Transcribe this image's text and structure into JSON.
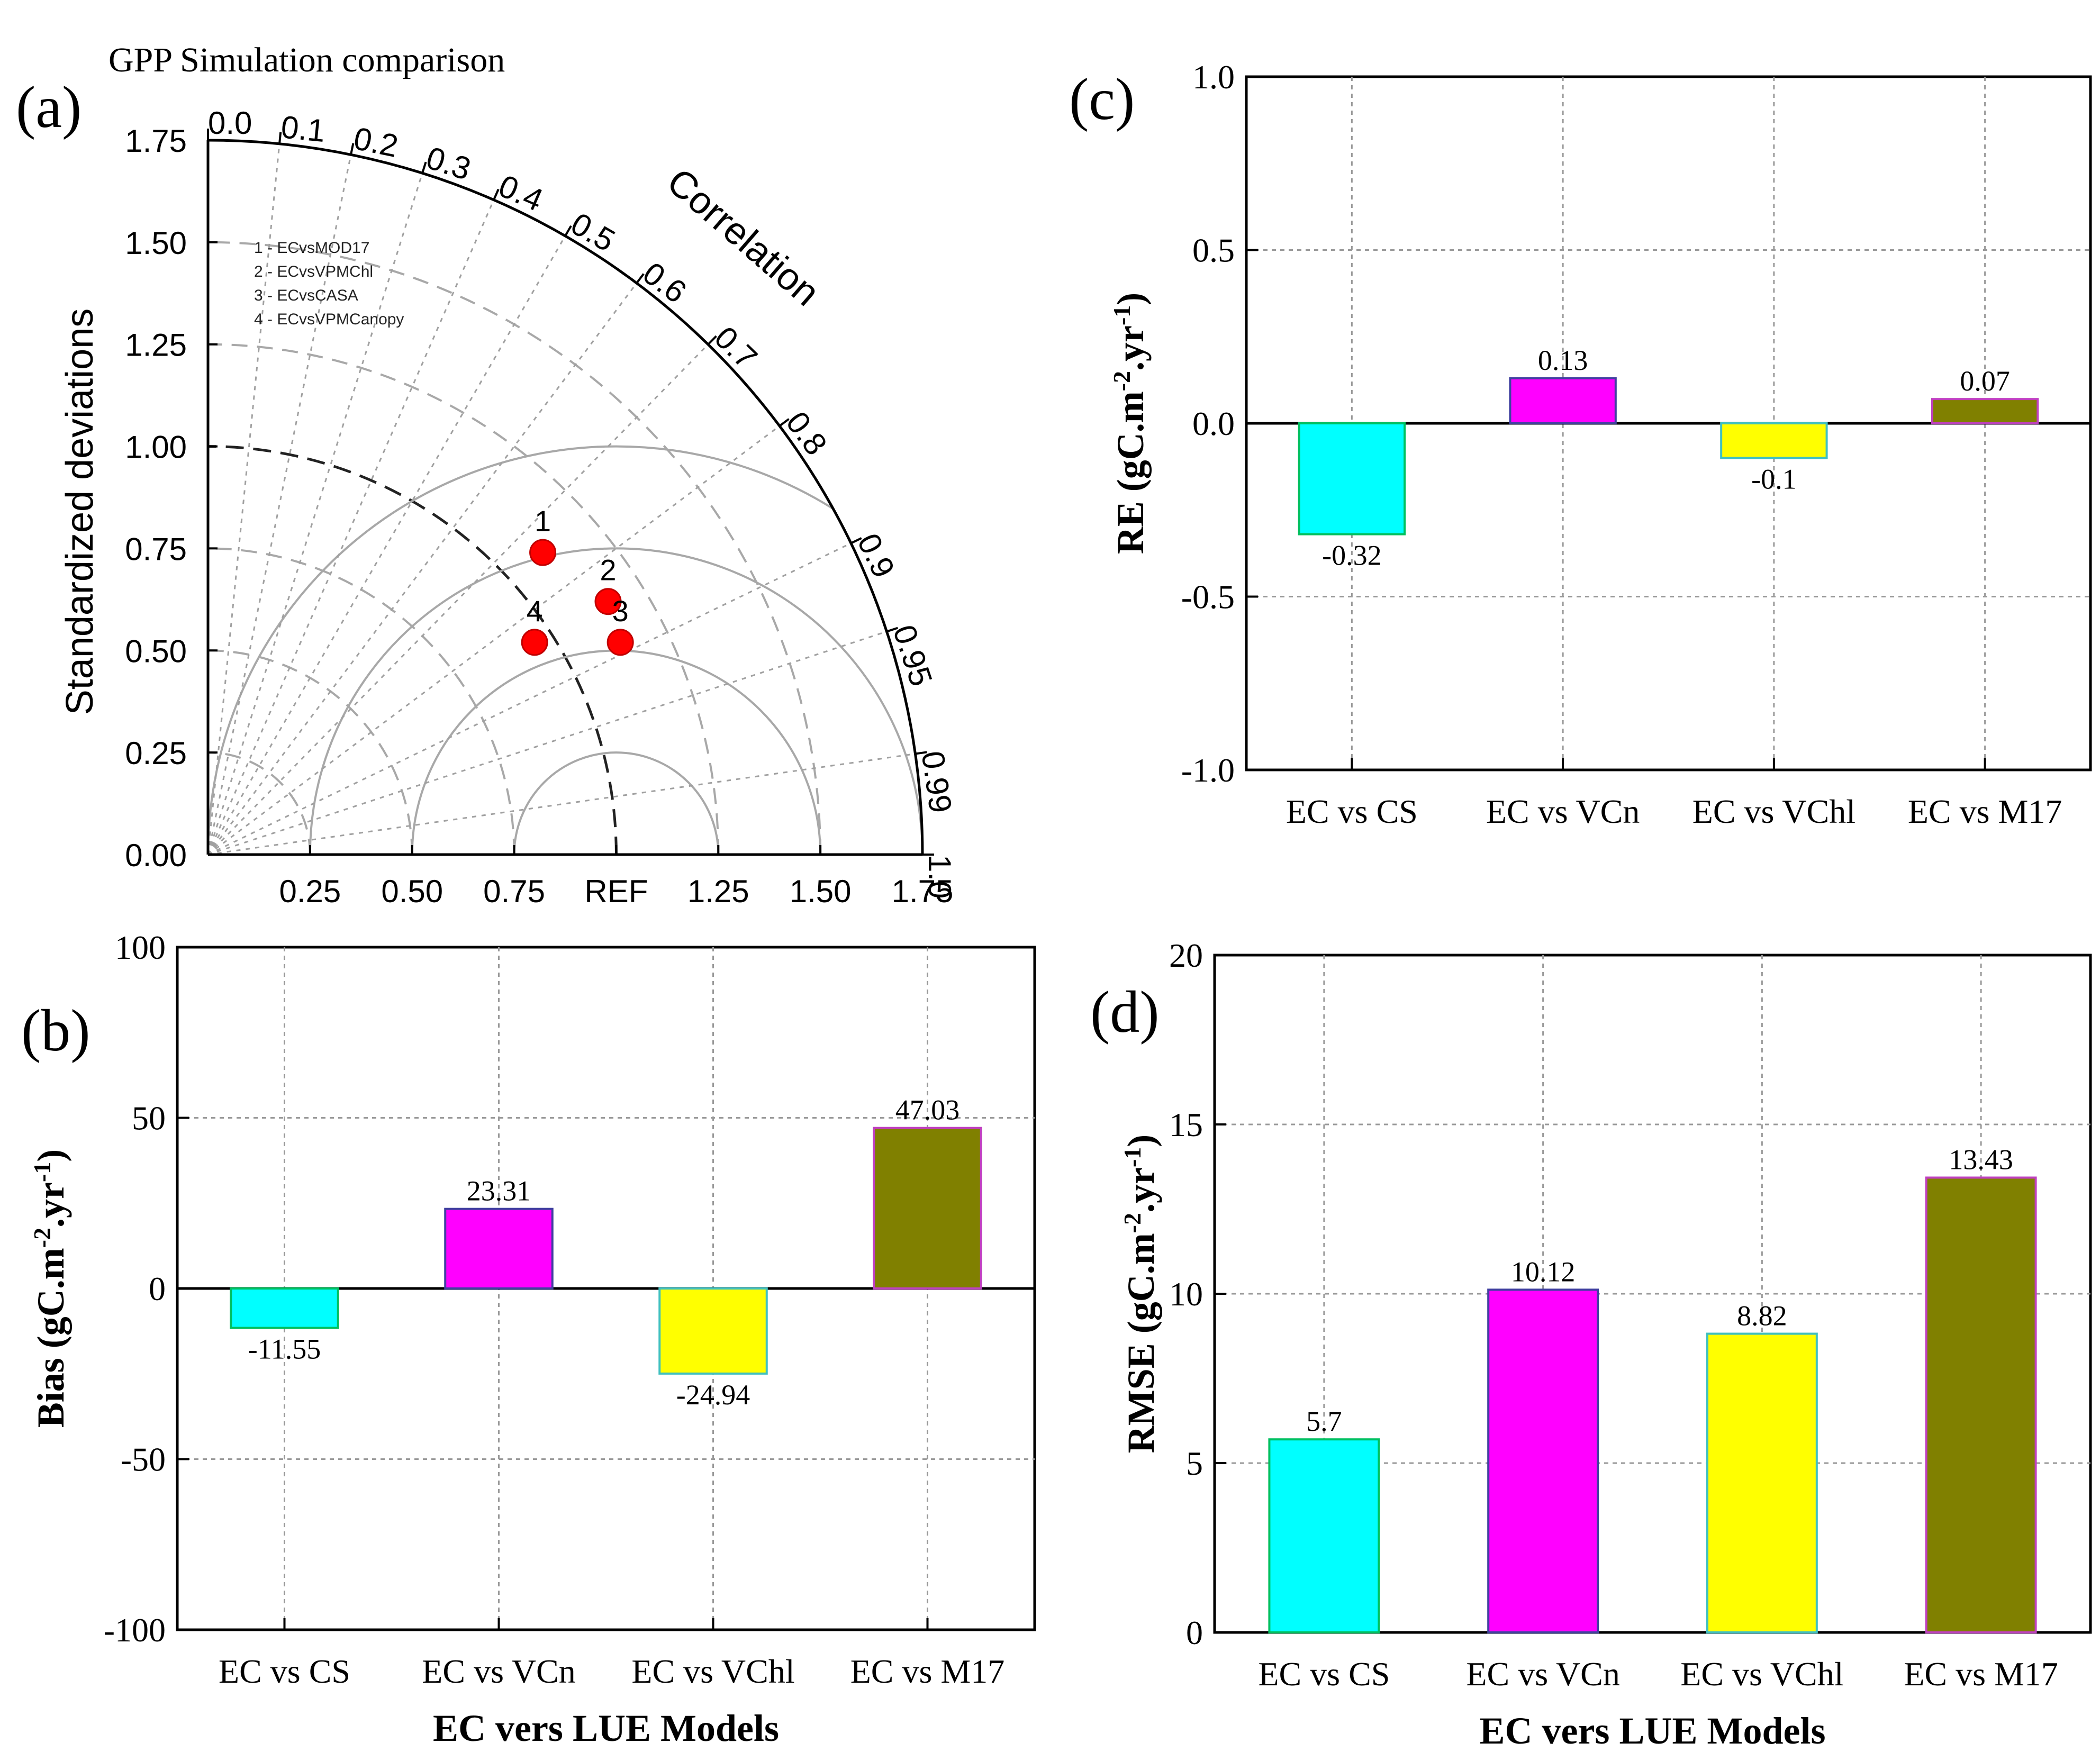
{
  "figure_title": "GPP Simulation comparison",
  "panel_labels": {
    "a": "(a)",
    "b": "(b)",
    "c": "(c)",
    "d": "(d)"
  },
  "colors": {
    "cyan": "#00ffff",
    "magenta": "#ff00ff",
    "yellow": "#ffff00",
    "olive": "#808000",
    "point": "#ff0000",
    "grid": "#b0b0b0",
    "arc": "#a8a8a8"
  },
  "chart_data": [
    {
      "id": "a",
      "type": "scatter",
      "subtype": "taylor-diagram",
      "title": "GPP Simulation comparison",
      "ylabel": "Standardized deviations",
      "correlation_label": "Correlation",
      "xlim": [
        0,
        1.75
      ],
      "ylim": [
        0,
        1.75
      ],
      "std_ticks": [
        "0.00",
        "0.25",
        "0.50",
        "0.75",
        "1.00",
        "1.25",
        "1.50",
        "1.75"
      ],
      "x_tick_labels": [
        "0.25",
        "0.50",
        "0.75",
        "REF",
        "1.25",
        "1.50",
        "1.75"
      ],
      "x_tick_values": [
        0.25,
        0.5,
        0.75,
        1.0,
        1.25,
        1.5,
        1.75
      ],
      "correlation_ticks": [
        "0.0",
        "0.1",
        "0.2",
        "0.3",
        "0.4",
        "0.5",
        "0.6",
        "0.7",
        "0.8",
        "0.9",
        "0.95",
        "0.99",
        "1.0"
      ],
      "correlation_values": [
        0.0,
        0.1,
        0.2,
        0.3,
        0.4,
        0.5,
        0.6,
        0.7,
        0.8,
        0.9,
        0.95,
        0.99,
        1.0
      ],
      "rmsd_arcs": [
        0.25,
        0.5,
        0.75,
        1.0
      ],
      "legend": [
        "1 - ECvsMOD17",
        "2 - ECvsVPMChl",
        "3 - ECvsCASA",
        "4 - ECvsVPMCanopy"
      ],
      "points": [
        {
          "label": "1",
          "x": 0.82,
          "y": 0.74
        },
        {
          "label": "2",
          "x": 0.98,
          "y": 0.62
        },
        {
          "label": "3",
          "x": 1.01,
          "y": 0.52
        },
        {
          "label": "4",
          "x": 0.8,
          "y": 0.52
        }
      ]
    },
    {
      "id": "b",
      "type": "bar",
      "categories": [
        "EC vs CS",
        "EC vs VCn",
        "EC vs VChl",
        "EC vs M17"
      ],
      "values": [
        -11.55,
        23.31,
        -24.94,
        47.03
      ],
      "value_labels": [
        "-11.55",
        "23.31",
        "-24.94",
        "47.03"
      ],
      "ylabel": "Bias (gC.m-2.yr-1)",
      "xlabel": "EC vers LUE Models",
      "ylim": [
        -100,
        100
      ],
      "yticks": [
        -100,
        -50,
        0,
        50,
        100
      ],
      "ytick_labels": [
        "-100",
        "-50",
        "0",
        "50",
        "100"
      ]
    },
    {
      "id": "c",
      "type": "bar",
      "categories": [
        "EC vs CS",
        "EC vs VCn",
        "EC vs VChl",
        "EC vs M17"
      ],
      "values": [
        -0.32,
        0.13,
        -0.1,
        0.07
      ],
      "value_labels": [
        "-0.32",
        "0.13",
        "-0.1",
        "0.07"
      ],
      "ylabel": "RE (gC.m-2.yr-1)",
      "xlabel": "",
      "ylim": [
        -1.0,
        1.0
      ],
      "yticks": [
        -1.0,
        -0.5,
        0.0,
        0.5,
        1.0
      ],
      "ytick_labels": [
        "-1.0",
        "-0.5",
        "0.0",
        "0.5",
        "1.0"
      ]
    },
    {
      "id": "d",
      "type": "bar",
      "categories": [
        "EC vs CS",
        "EC vs VCn",
        "EC vs VChl",
        "EC vs M17"
      ],
      "values": [
        5.7,
        10.12,
        8.82,
        13.43
      ],
      "value_labels": [
        "5.7",
        "10.12",
        "8.82",
        "13.43"
      ],
      "ylabel": "RMSE (gC.m-2.yr-1)",
      "xlabel": "EC vers LUE Models",
      "ylim": [
        0,
        20
      ],
      "yticks": [
        0,
        5,
        10,
        15,
        20
      ],
      "ytick_labels": [
        "0",
        "5",
        "10",
        "15",
        "20"
      ]
    }
  ]
}
